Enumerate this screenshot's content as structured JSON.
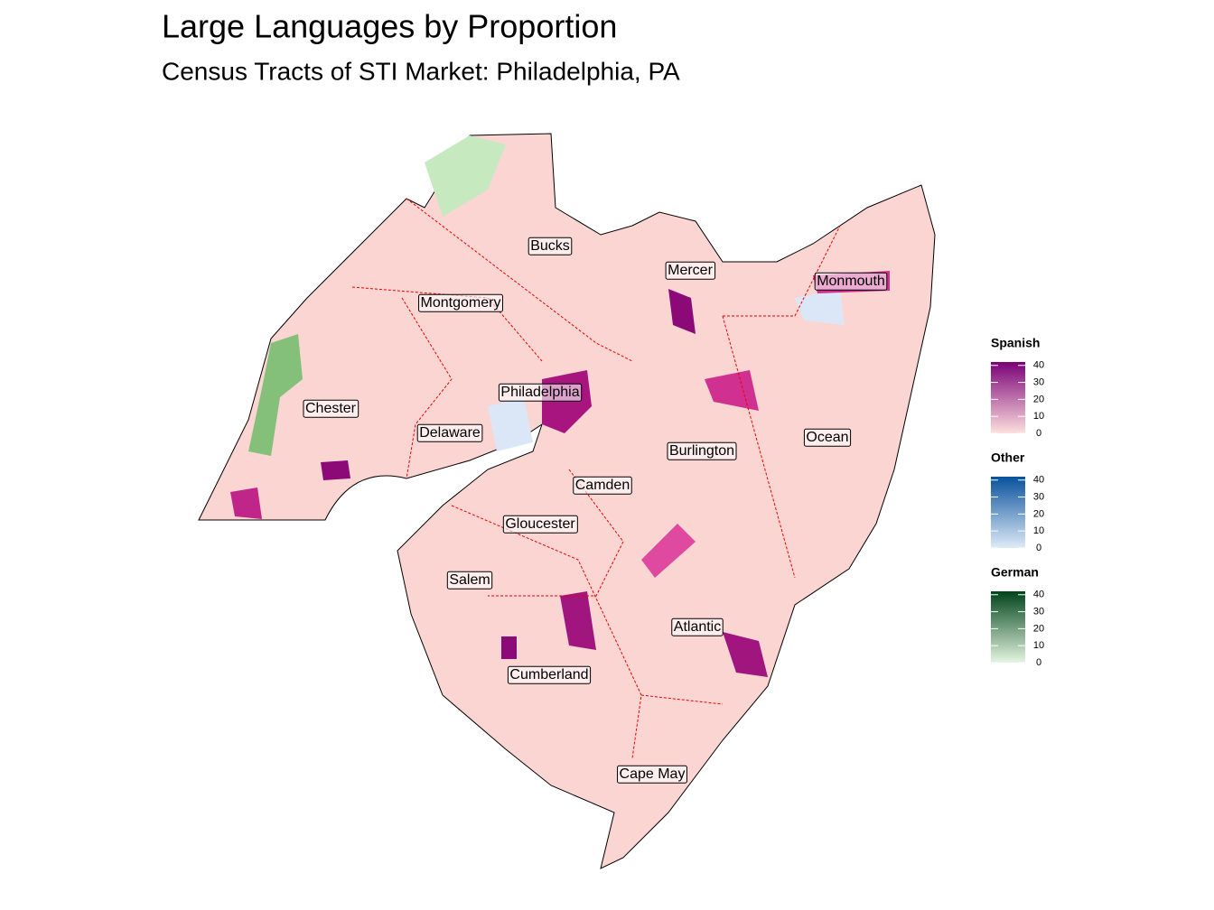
{
  "title": "Large Languages by Proportion",
  "subtitle": "Census Tracts of STI Market: Philadelphia, PA",
  "counties": [
    "Bucks",
    "Mercer",
    "Monmouth",
    "Montgomery",
    "Philadelphia",
    "Chester",
    "Delaware",
    "Burlington",
    "Ocean",
    "Camden",
    "Gloucester",
    "Salem",
    "Atlantic",
    "Cumberland",
    "Cape May"
  ],
  "legends": [
    {
      "title": "Spanish",
      "lim": [
        0,
        42
      ],
      "ticks": [
        0,
        10,
        20,
        30,
        40
      ],
      "colors": [
        "#fde0dd",
        "#7a0177"
      ]
    },
    {
      "title": "Other",
      "lim": [
        0,
        42
      ],
      "ticks": [
        0,
        10,
        20,
        30,
        40
      ],
      "colors": [
        "#deebf7",
        "#08519c"
      ]
    },
    {
      "title": "German",
      "lim": [
        0,
        42
      ],
      "ticks": [
        0,
        10,
        20,
        30,
        40
      ],
      "colors": [
        "#e5f5e0",
        "#00441b"
      ]
    }
  ]
}
